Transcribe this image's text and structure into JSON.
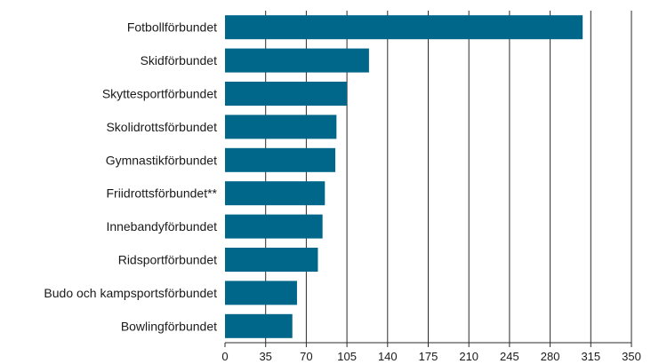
{
  "chart_data": {
    "type": "bar",
    "orientation": "horizontal",
    "categories": [
      "Fotbollförbundet",
      "Skidförbundet",
      "Skyttesportförbundet",
      "Skolidrottsförbundet",
      "Gymnastikförbundet",
      "Friidrottsförbundet**",
      "Innebandyförbundet",
      "Ridsportförbundet",
      "Budo och kampsportsförbundet",
      "Bowlingförbundet"
    ],
    "values": [
      308,
      124,
      105,
      96,
      95,
      86,
      84,
      80,
      62,
      58
    ],
    "xlim": [
      0,
      350
    ],
    "xticks": [
      "0",
      "35",
      "70",
      "105",
      "140",
      "175",
      "210",
      "245",
      "280",
      "315",
      "350"
    ],
    "grid": "vertical",
    "title": "",
    "xlabel": "",
    "ylabel": "",
    "bar_color": "#00678a"
  }
}
